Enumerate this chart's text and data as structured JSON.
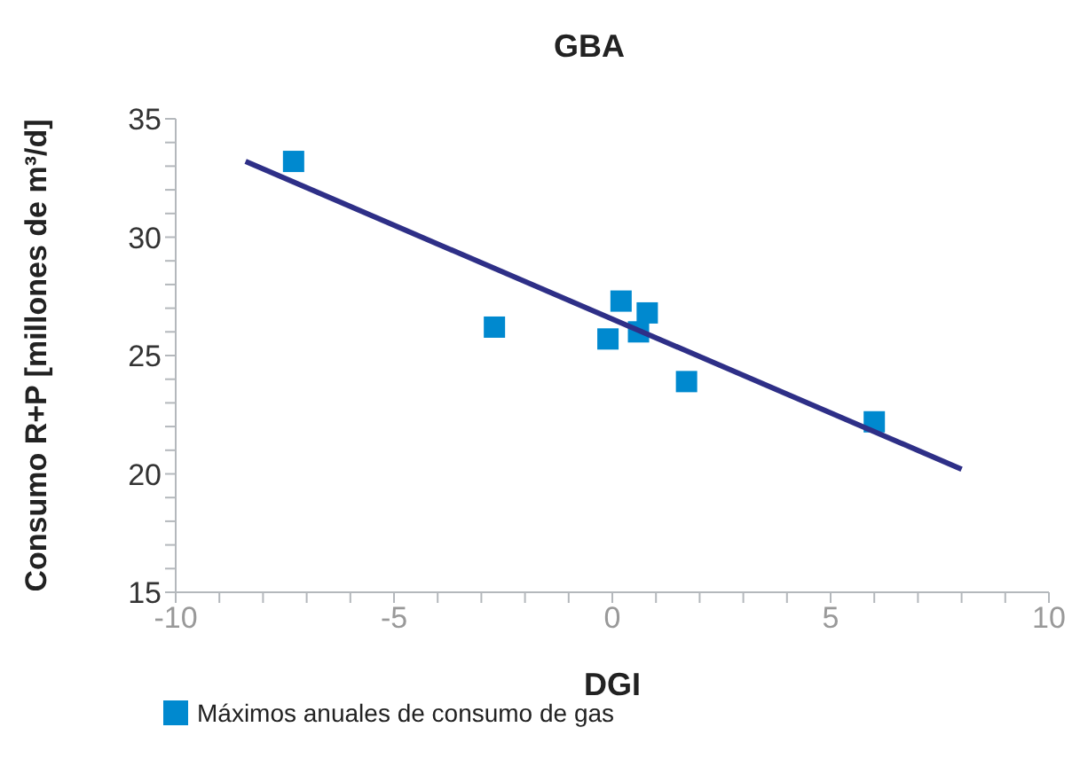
{
  "chart_data": {
    "type": "scatter",
    "title": "GBA",
    "xlabel": "DGI",
    "ylabel": "Consumo R+P [millones de m³/d]",
    "xlim": [
      -10,
      10
    ],
    "xticks": [
      -10,
      {
        "value": -9,
        "label": null
      },
      {
        "value": -8,
        "label": null
      },
      {
        "value": -7,
        "label": null
      },
      {
        "value": -6,
        "label": null
      },
      -5,
      {
        "value": -4,
        "label": null
      },
      {
        "value": -3,
        "label": null
      },
      {
        "value": -2,
        "label": null
      },
      {
        "value": -1,
        "label": null
      },
      0,
      {
        "value": 1,
        "label": null
      },
      {
        "value": 2,
        "label": null
      },
      {
        "value": 3,
        "label": null
      },
      {
        "value": 4,
        "label": null
      },
      5,
      {
        "value": 6,
        "label": null
      },
      {
        "value": 7,
        "label": null
      },
      {
        "value": 8,
        "label": null
      },
      {
        "value": 9,
        "label": null
      },
      10
    ],
    "ylim": [
      15,
      35
    ],
    "yticks": [
      15,
      {
        "value": 16,
        "label": null
      },
      {
        "value": 17,
        "label": null
      },
      {
        "value": 18,
        "label": null
      },
      {
        "value": 19,
        "label": null
      },
      20,
      {
        "value": 21,
        "label": null
      },
      {
        "value": 22,
        "label": null
      },
      {
        "value": 23,
        "label": null
      },
      {
        "value": 24,
        "label": null
      },
      25,
      {
        "value": 26,
        "label": null
      },
      {
        "value": 27,
        "label": null
      },
      {
        "value": 28,
        "label": null
      },
      {
        "value": 29,
        "label": null
      },
      30,
      {
        "value": 31,
        "label": null
      },
      {
        "value": 32,
        "label": null
      },
      {
        "value": 33,
        "label": null
      },
      {
        "value": 34,
        "label": null
      },
      35
    ],
    "grid": false,
    "legend": "bottom left",
    "series": [
      {
        "name": "Máximos anuales de consumo de gas",
        "marker": "square",
        "color": "#0089cf",
        "x": [
          -7.3,
          -2.7,
          -0.1,
          0.2,
          0.6,
          0.8,
          1.7,
          6.0
        ],
        "values": [
          33.2,
          26.2,
          25.7,
          27.3,
          26.0,
          26.8,
          23.9,
          22.2
        ]
      },
      {
        "type": "line",
        "marker": "none",
        "color": "#2e2f87",
        "x": [
          -8.4,
          8.0
        ],
        "values": [
          33.2,
          20.2
        ]
      }
    ]
  }
}
